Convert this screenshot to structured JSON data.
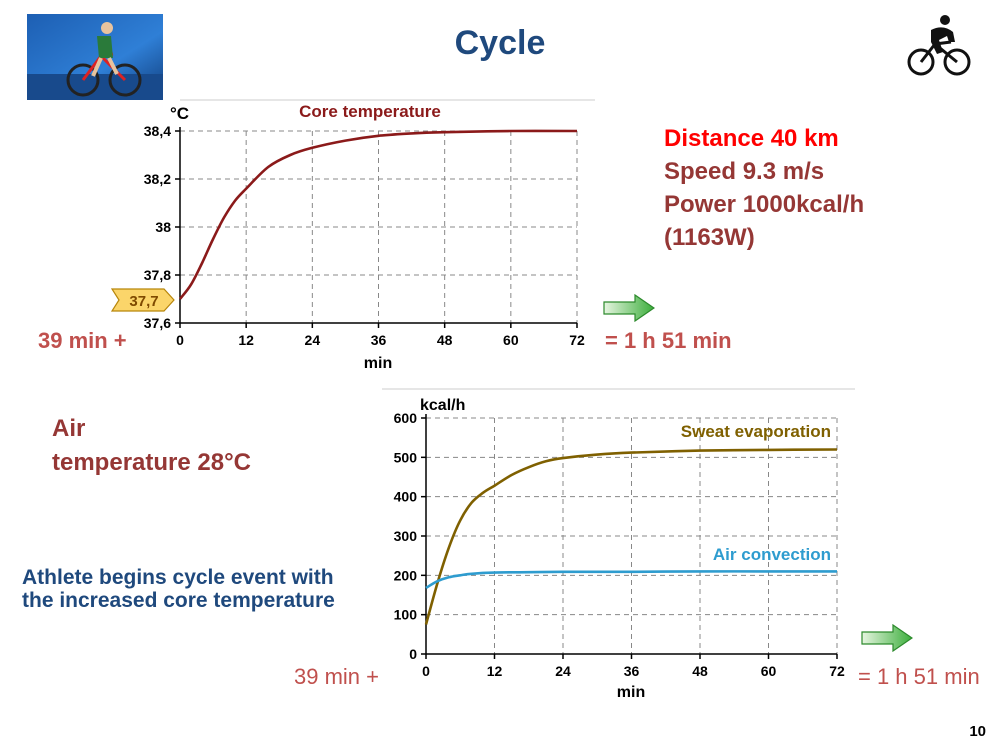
{
  "page": {
    "title": "Cycle",
    "info": {
      "distance": "Distance 40 km",
      "speed": "Speed 9.3 m/s",
      "power": "Power 1000kcal/h",
      "watts": "(1163W)"
    },
    "air_label_1": "Air",
    "air_label_2": "temperature 28°C",
    "athlete_note": "Athlete begins cycle event with  the increased core temperature",
    "page_number": "10",
    "chart1_left_note": "39 min +",
    "chart1_right_note": "= 1 h 51 min",
    "chart2_left_note": "39 min +",
    "chart2_right_note": "= 1 h 51 min",
    "icons": [
      "photo-cyclist-icon",
      "cyclist-silhouette-icon",
      "right-arrow-icon"
    ],
    "colors": {
      "title": "#1f497d",
      "distance": "#ff0000",
      "info": "#953735",
      "core": "#8b1a1a",
      "sweat": "#7f6000",
      "convection": "#2e9ccf"
    }
  },
  "chart_data": [
    {
      "type": "line",
      "title": "Core  temperature",
      "ylabel": "°C",
      "xlabel": "min",
      "xlim": [
        0,
        72
      ],
      "ylim": [
        37.6,
        38.4
      ],
      "xticks": [
        "0",
        "12",
        "24",
        "36",
        "48",
        "60",
        "72"
      ],
      "yticks": [
        "37,6",
        "37,8",
        "38",
        "38,2",
        "38,4"
      ],
      "start_marker": "37,7",
      "grid": true,
      "series": [
        {
          "name": "",
          "color": "#8b1a1a",
          "x": [
            0,
            2,
            4,
            6,
            8,
            10,
            12,
            16,
            20,
            24,
            30,
            36,
            42,
            48,
            60,
            72
          ],
          "y": [
            37.7,
            37.76,
            37.85,
            37.95,
            38.04,
            38.11,
            38.16,
            38.25,
            38.3,
            38.33,
            38.36,
            38.38,
            38.39,
            38.395,
            38.4,
            38.4
          ]
        }
      ]
    },
    {
      "type": "line",
      "title": "",
      "ylabel": "kcal/h",
      "xlabel": "min",
      "xlim": [
        0,
        72
      ],
      "ylim": [
        0,
        600
      ],
      "xticks": [
        "0",
        "12",
        "24",
        "36",
        "48",
        "60",
        "72"
      ],
      "yticks": [
        "0",
        "100",
        "200",
        "300",
        "400",
        "500",
        "600"
      ],
      "grid": true,
      "series": [
        {
          "name": "Sweat evaporation",
          "color": "#7f6000",
          "x": [
            0,
            2,
            4,
            6,
            8,
            10,
            12,
            15,
            18,
            21,
            24,
            30,
            36,
            48,
            60,
            72
          ],
          "y": [
            75,
            180,
            270,
            340,
            385,
            410,
            428,
            455,
            475,
            490,
            498,
            507,
            512,
            517,
            519,
            520
          ]
        },
        {
          "name": "Air convection",
          "color": "#2e9ccf",
          "x": [
            0,
            2,
            4,
            6,
            8,
            12,
            18,
            24,
            36,
            48,
            60,
            72
          ],
          "y": [
            168,
            185,
            195,
            200,
            204,
            207,
            208,
            209,
            209,
            210,
            210,
            210
          ]
        }
      ]
    }
  ]
}
